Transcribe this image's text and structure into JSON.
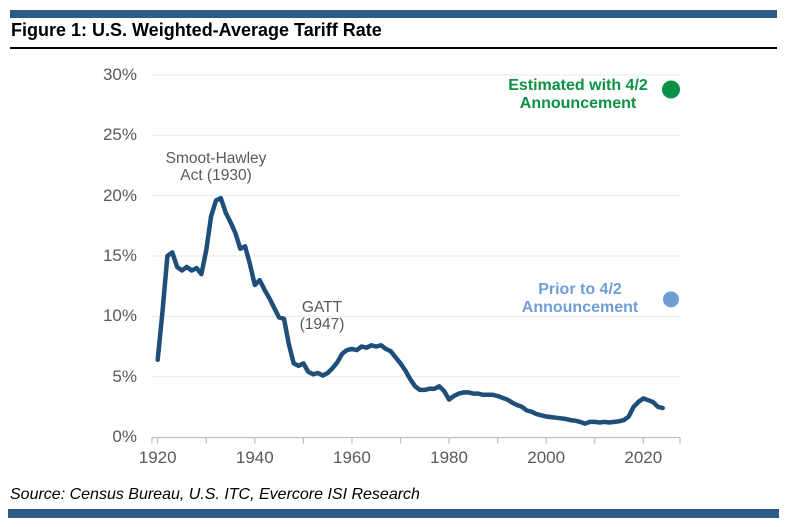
{
  "header": {
    "title": "Figure 1: U.S. Weighted-Average Tariff Rate"
  },
  "footer": {
    "source": "Source: Census Bureau, U.S. ITC, Evercore ISI Research"
  },
  "colors": {
    "accent_bar": "#2d5a87",
    "line": "#1f4e79",
    "green": "#0a9144",
    "light_blue": "#6f9ed6",
    "axis_text": "#595959",
    "annotation_gray": "#595959",
    "grid": "#eaeaea",
    "axis_line": "#c0c0c0",
    "title_text": "#000000"
  },
  "chart_data": {
    "type": "line",
    "title": "U.S. Weighted-Average Tariff Rate",
    "xlabel": "",
    "ylabel": "",
    "ylim": [
      0,
      30
    ],
    "xlim": [
      1918.8,
      2027.5
    ],
    "grid": "horizontal",
    "y_ticks": [
      30,
      25,
      20,
      15,
      10,
      5,
      0
    ],
    "y_tick_labels": [
      "30%",
      "25%",
      "20%",
      "15%",
      "10%",
      "5%",
      "0%"
    ],
    "x_ticks": [
      1920,
      1940,
      1960,
      1980,
      2000,
      2020
    ],
    "x_tick_labels": [
      "1920",
      "1940",
      "1960",
      "1980",
      "2000",
      "2020"
    ],
    "x_minor_ticks": [
      1930,
      1950,
      1970,
      1990,
      2010
    ],
    "series": [
      {
        "name": "U.S. weighted-average tariff rate",
        "color": "#1f4e79",
        "x": [
          1920,
          1921,
          1922,
          1923,
          1924,
          1925,
          1926,
          1927,
          1928,
          1929,
          1930,
          1931,
          1932,
          1933,
          1934,
          1935,
          1936,
          1937,
          1938,
          1939,
          1940,
          1941,
          1942,
          1943,
          1944,
          1945,
          1946,
          1947,
          1948,
          1949,
          1950,
          1951,
          1952,
          1953,
          1954,
          1955,
          1956,
          1957,
          1958,
          1959,
          1960,
          1961,
          1962,
          1963,
          1964,
          1965,
          1966,
          1967,
          1968,
          1969,
          1970,
          1971,
          1972,
          1973,
          1974,
          1975,
          1976,
          1977,
          1978,
          1979,
          1980,
          1981,
          1982,
          1983,
          1984,
          1985,
          1986,
          1987,
          1988,
          1989,
          1990,
          1991,
          1992,
          1993,
          1994,
          1995,
          1996,
          1997,
          1998,
          1999,
          2000,
          2001,
          2002,
          2003,
          2004,
          2005,
          2006,
          2007,
          2008,
          2009,
          2010,
          2011,
          2012,
          2013,
          2014,
          2015,
          2016,
          2017,
          2018,
          2019,
          2020,
          2021,
          2022,
          2023,
          2024
        ],
        "y": [
          6.4,
          10.5,
          15.0,
          15.3,
          14.1,
          13.8,
          14.1,
          13.8,
          14.0,
          13.5,
          15.5,
          18.3,
          19.6,
          19.8,
          18.6,
          17.8,
          16.9,
          15.6,
          15.8,
          14.3,
          12.6,
          13.0,
          12.2,
          11.5,
          10.7,
          9.9,
          9.8,
          7.7,
          6.1,
          5.9,
          6.1,
          5.4,
          5.2,
          5.3,
          5.1,
          5.3,
          5.7,
          6.2,
          6.9,
          7.2,
          7.3,
          7.2,
          7.5,
          7.4,
          7.6,
          7.5,
          7.6,
          7.3,
          7.1,
          6.6,
          6.1,
          5.5,
          4.8,
          4.2,
          3.9,
          3.9,
          4.0,
          4.0,
          4.2,
          3.8,
          3.1,
          3.4,
          3.6,
          3.7,
          3.7,
          3.6,
          3.6,
          3.5,
          3.5,
          3.5,
          3.4,
          3.25,
          3.1,
          2.85,
          2.65,
          2.5,
          2.2,
          2.1,
          1.9,
          1.8,
          1.7,
          1.65,
          1.6,
          1.55,
          1.5,
          1.4,
          1.35,
          1.25,
          1.1,
          1.25,
          1.25,
          1.2,
          1.25,
          1.2,
          1.25,
          1.3,
          1.4,
          1.7,
          2.5,
          2.9,
          3.2,
          3.05,
          2.9,
          2.5,
          2.4
        ]
      }
    ],
    "points": [
      {
        "name": "estimated-with-4-2-dot",
        "label": "Estimated with 4/2 Announcement",
        "year": 2025.7,
        "value": 28.8,
        "color": "#0a9144",
        "r": 9
      },
      {
        "name": "prior-to-4-2-dot",
        "label": "Prior to 4/2 Announcement",
        "year": 2025.7,
        "value": 11.4,
        "color": "#6f9ed6",
        "r": 8
      }
    ],
    "annotations": {
      "smoot_hawley": {
        "text": "Smoot-Hawley\nAct (1930)"
      },
      "gatt": {
        "text": "GATT\n(1947)"
      },
      "estimated": {
        "text": "Estimated with 4/2\nAnnouncement"
      },
      "prior": {
        "text": "Prior to 4/2\nAnnouncement"
      }
    }
  }
}
